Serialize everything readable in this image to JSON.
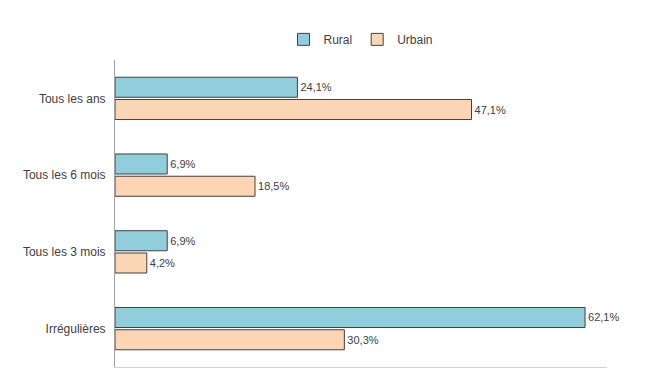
{
  "chart_data": {
    "type": "bar",
    "orientation": "horizontal",
    "categories": [
      "Tous les ans",
      "Tous les 6 mois",
      "Tous les 3 mois",
      "Irrégulières"
    ],
    "series": [
      {
        "name": "Rural",
        "color": "#92cddc",
        "values": [
          24.1,
          6.9,
          6.9,
          62.1
        ],
        "value_labels": [
          "24,1%",
          "6,9%",
          "6,9%",
          "62,1%"
        ]
      },
      {
        "name": "Urbain",
        "color": "#fcd5b5",
        "values": [
          47.1,
          18.5,
          4.2,
          30.3
        ],
        "value_labels": [
          "47,1%",
          "18,5%",
          "4,2%",
          "30,3%"
        ]
      }
    ],
    "xlim": [
      0,
      65
    ],
    "xticks": [],
    "grid": false,
    "legend": "top",
    "data_labels": true,
    "tick_labels": "y"
  }
}
